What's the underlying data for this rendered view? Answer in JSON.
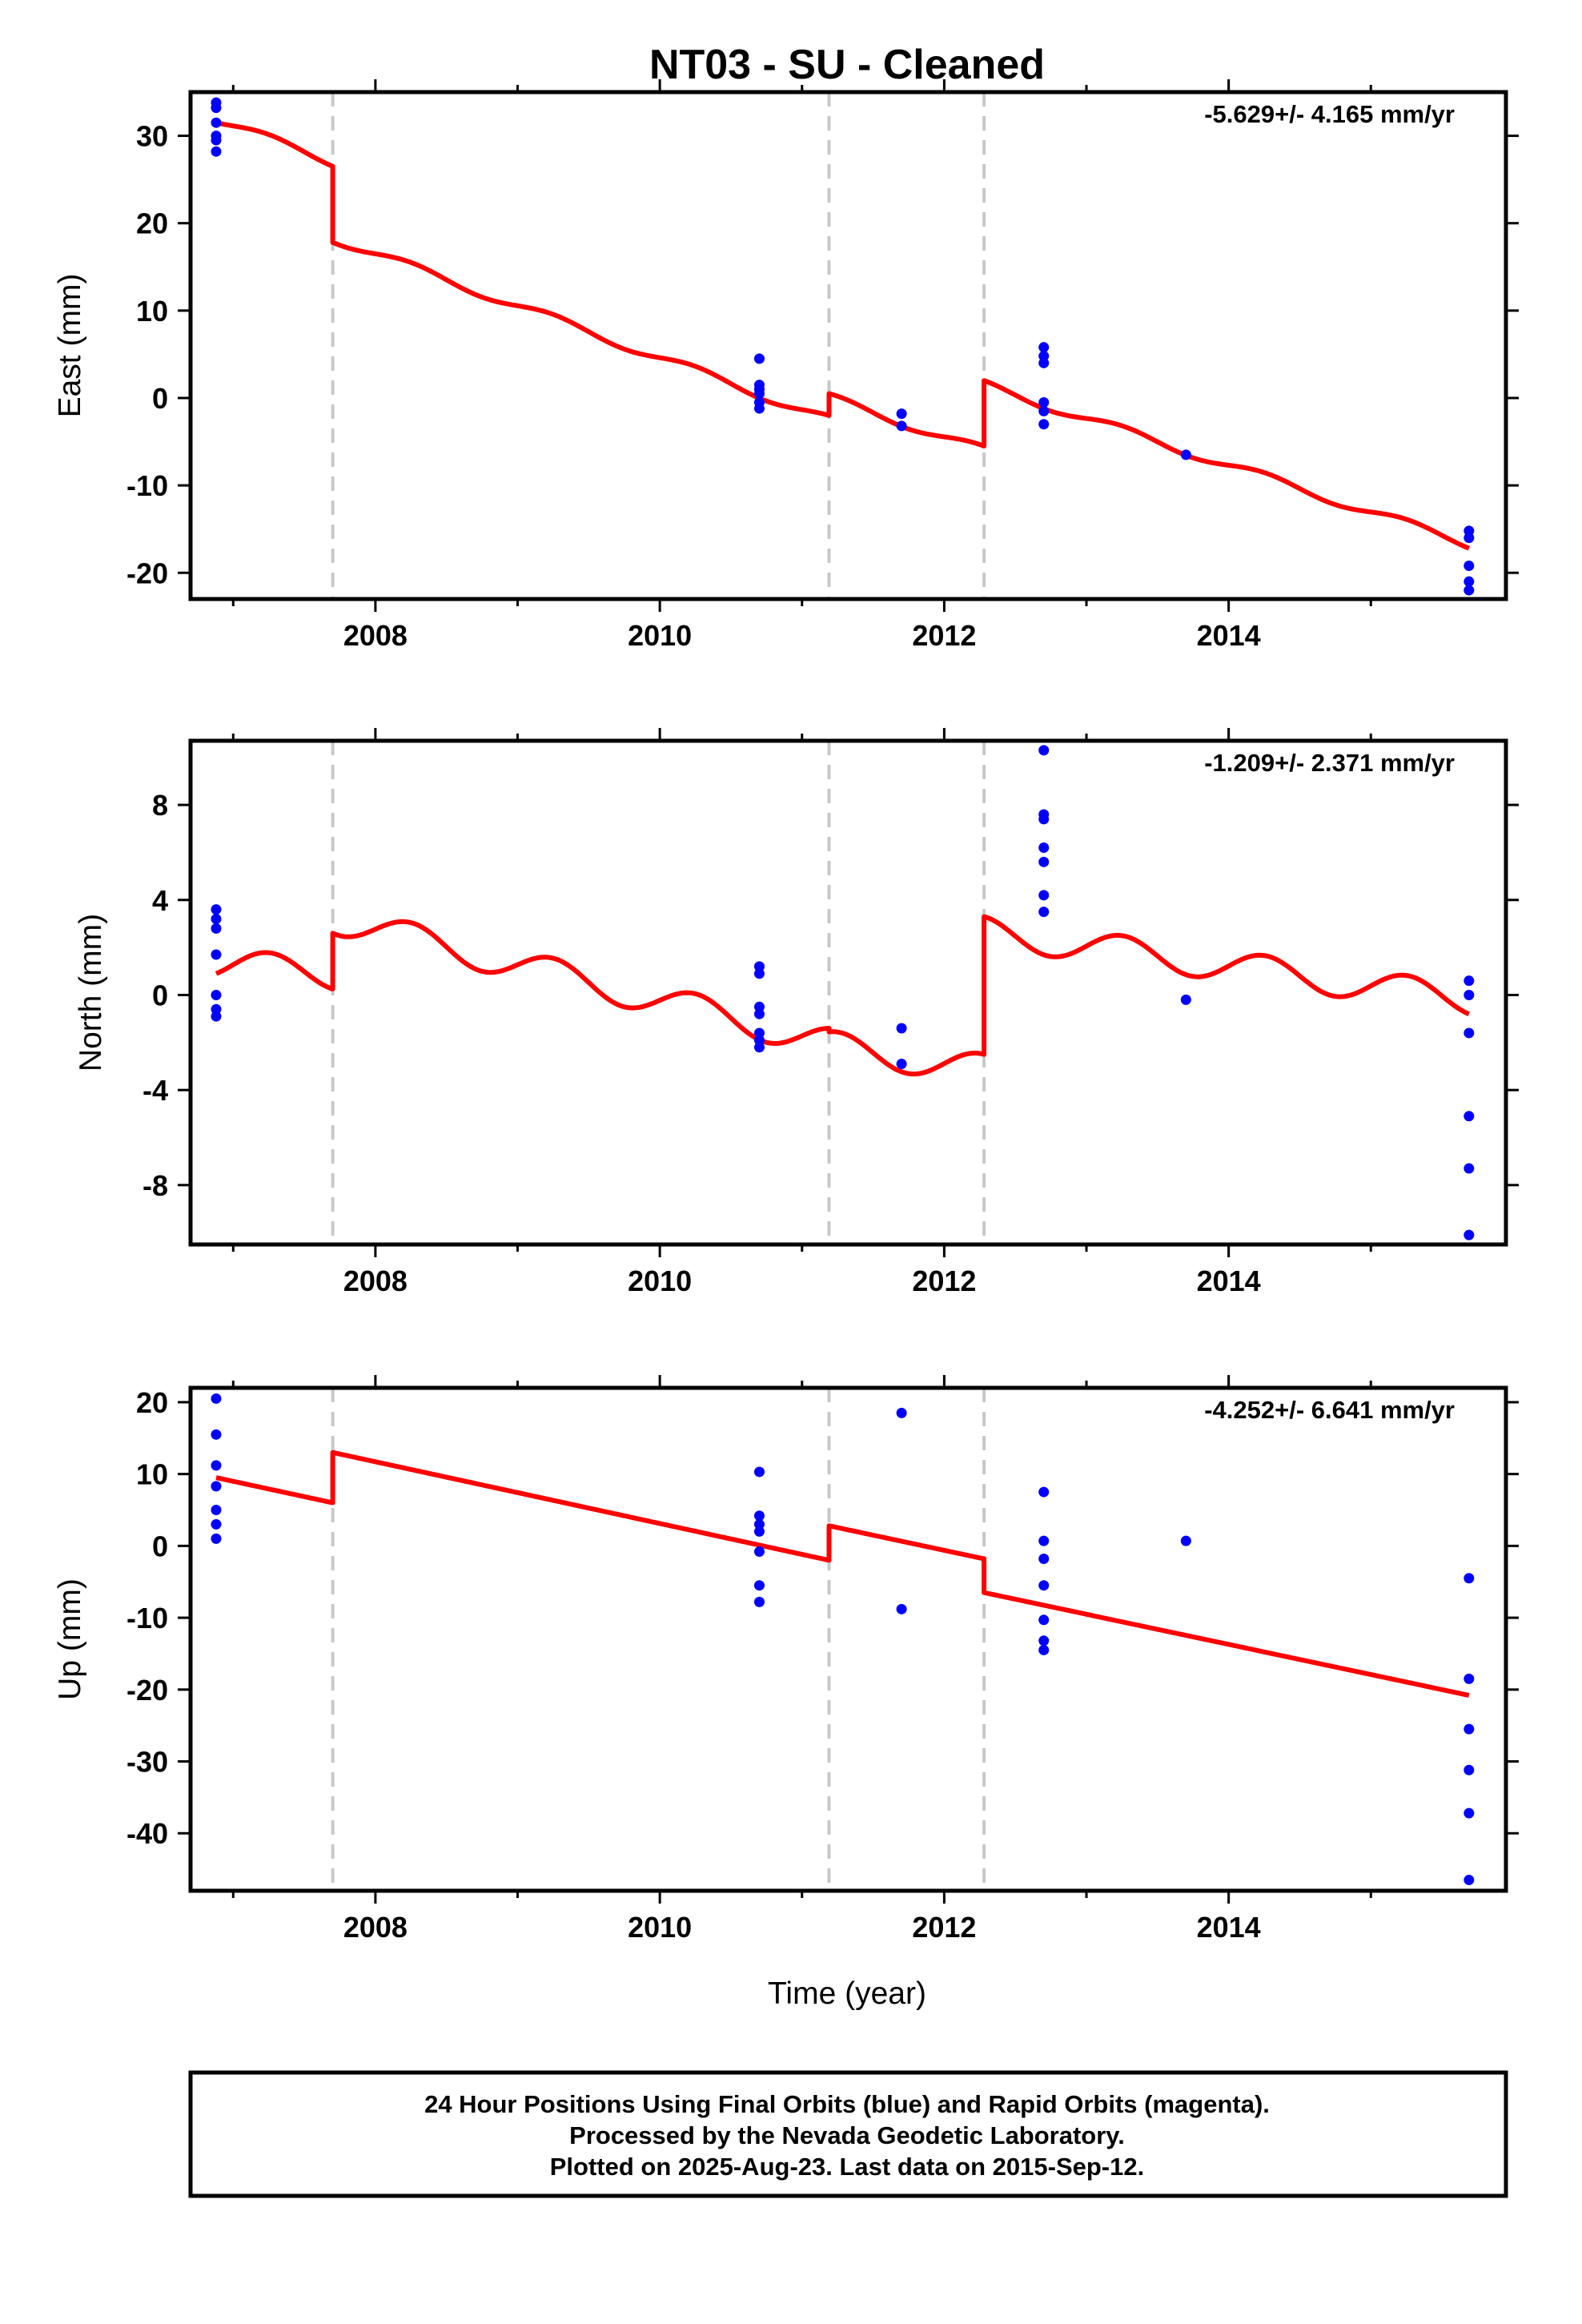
{
  "title": "NT03  - SU - Cleaned",
  "x_axis_label": "Time (year)",
  "colors": {
    "model": "#ff0000",
    "points": "#0000ff",
    "steps": "#c8c8c8",
    "frame": "#000000"
  },
  "caption_lines": [
    "24 Hour Positions Using Final Orbits (blue) and Rapid Orbits (magenta).",
    "Processed by the Nevada Geodetic Laboratory.",
    "Plotted on 2025-Aug-23. Last data on 2015-Sep-12."
  ],
  "chart_data": [
    {
      "type": "scatter",
      "component": "East",
      "ylabel": "East (mm)",
      "rate_label": "-5.629+/- 4.165 mm/yr",
      "xlim": [
        2006.7,
        2015.95
      ],
      "ylim": [
        -23,
        35
      ],
      "yticks": [
        30,
        20,
        10,
        0,
        -10,
        -20
      ],
      "xticks": [
        2008,
        2010,
        2012,
        2014
      ],
      "step_epochs": [
        2007.7,
        2011.19,
        2012.28
      ],
      "model": [
        {
          "x": [
            2006.88,
            2007.7
          ],
          "y": [
            31.5,
            26.5
          ],
          "seasonal": 0.5
        },
        {
          "x": [
            2007.7,
            2011.19
          ],
          "y": [
            17.8,
            -2.0
          ],
          "seasonal": 0.5
        },
        {
          "x": [
            2011.19,
            2012.28
          ],
          "y": [
            0.5,
            -5.5
          ],
          "seasonal": 0.5
        },
        {
          "x": [
            2012.28,
            2015.69
          ],
          "y": [
            2.0,
            -17.2
          ],
          "seasonal": 0.5
        }
      ],
      "points": [
        {
          "x": 2006.88,
          "y": 33.8
        },
        {
          "x": 2006.88,
          "y": 33.2
        },
        {
          "x": 2006.88,
          "y": 31.5
        },
        {
          "x": 2006.88,
          "y": 30.0
        },
        {
          "x": 2006.88,
          "y": 29.5
        },
        {
          "x": 2006.88,
          "y": 28.2
        },
        {
          "x": 2010.7,
          "y": 4.5
        },
        {
          "x": 2010.7,
          "y": 1.5
        },
        {
          "x": 2010.7,
          "y": 1.0
        },
        {
          "x": 2010.7,
          "y": 0.5
        },
        {
          "x": 2010.7,
          "y": -0.5
        },
        {
          "x": 2010.7,
          "y": -1.2
        },
        {
          "x": 2011.7,
          "y": -1.8
        },
        {
          "x": 2011.7,
          "y": -3.2
        },
        {
          "x": 2012.7,
          "y": 5.8
        },
        {
          "x": 2012.7,
          "y": 4.8
        },
        {
          "x": 2012.7,
          "y": 4.0
        },
        {
          "x": 2012.7,
          "y": -0.5
        },
        {
          "x": 2012.7,
          "y": -1.5
        },
        {
          "x": 2012.7,
          "y": -3.0
        },
        {
          "x": 2013.7,
          "y": -6.5
        },
        {
          "x": 2015.69,
          "y": -15.2
        },
        {
          "x": 2015.69,
          "y": -16.0
        },
        {
          "x": 2015.69,
          "y": -19.2
        },
        {
          "x": 2015.69,
          "y": -21.0
        },
        {
          "x": 2015.69,
          "y": -22.0
        }
      ]
    },
    {
      "type": "scatter",
      "component": "North",
      "ylabel": "North (mm)",
      "rate_label": "-1.209+/- 2.371 mm/yr",
      "xlim": [
        2006.7,
        2015.95
      ],
      "ylim": [
        -10.5,
        10.7
      ],
      "yticks": [
        8,
        4,
        0,
        -4,
        -8
      ],
      "xticks": [
        2008,
        2010,
        2012,
        2014
      ],
      "step_epochs": [
        2007.7,
        2011.19,
        2012.28
      ],
      "model": [
        {
          "x": [
            2006.88,
            2007.7
          ],
          "y": [
            0.9,
            0.25
          ],
          "seasonal": 0.65
        },
        {
          "x": [
            2007.7,
            2011.19
          ],
          "y": [
            2.6,
            -1.4
          ],
          "seasonal": 0.65
        },
        {
          "x": [
            2011.19,
            2012.28
          ],
          "y": [
            -1.55,
            -2.5
          ],
          "seasonal": 0.65
        },
        {
          "x": [
            2012.28,
            2015.69
          ],
          "y": [
            3.3,
            -0.8
          ],
          "seasonal": 0.65
        }
      ],
      "points": [
        {
          "x": 2006.88,
          "y": 3.6
        },
        {
          "x": 2006.88,
          "y": 3.2
        },
        {
          "x": 2006.88,
          "y": 2.8
        },
        {
          "x": 2006.88,
          "y": 1.7
        },
        {
          "x": 2006.88,
          "y": 0.0
        },
        {
          "x": 2006.88,
          "y": -0.6
        },
        {
          "x": 2006.88,
          "y": -0.9
        },
        {
          "x": 2010.7,
          "y": 1.2
        },
        {
          "x": 2010.7,
          "y": 0.9
        },
        {
          "x": 2010.7,
          "y": -0.5
        },
        {
          "x": 2010.7,
          "y": -0.8
        },
        {
          "x": 2010.7,
          "y": -1.6
        },
        {
          "x": 2010.7,
          "y": -1.9
        },
        {
          "x": 2010.7,
          "y": -2.2
        },
        {
          "x": 2011.7,
          "y": -1.4
        },
        {
          "x": 2011.7,
          "y": -2.9
        },
        {
          "x": 2012.7,
          "y": 10.3
        },
        {
          "x": 2012.7,
          "y": 7.6
        },
        {
          "x": 2012.7,
          "y": 7.4
        },
        {
          "x": 2012.7,
          "y": 6.2
        },
        {
          "x": 2012.7,
          "y": 5.6
        },
        {
          "x": 2012.7,
          "y": 4.2
        },
        {
          "x": 2012.7,
          "y": 3.5
        },
        {
          "x": 2013.7,
          "y": -0.2
        },
        {
          "x": 2015.69,
          "y": 0.6
        },
        {
          "x": 2015.69,
          "y": 0.0
        },
        {
          "x": 2015.69,
          "y": -1.6
        },
        {
          "x": 2015.69,
          "y": -5.1
        },
        {
          "x": 2015.69,
          "y": -7.3
        },
        {
          "x": 2015.69,
          "y": -10.1
        }
      ]
    },
    {
      "type": "scatter",
      "component": "Up",
      "ylabel": "Up (mm)",
      "rate_label": "-4.252+/- 6.641 mm/yr",
      "xlim": [
        2006.7,
        2015.95
      ],
      "ylim": [
        -48,
        22
      ],
      "yticks": [
        20,
        10,
        0,
        -10,
        -20,
        -30,
        -40
      ],
      "xticks": [
        2008,
        2010,
        2012,
        2014
      ],
      "step_epochs": [
        2007.7,
        2011.19,
        2012.28
      ],
      "model": [
        {
          "x": [
            2006.88,
            2007.7
          ],
          "y": [
            9.5,
            6.0
          ],
          "seasonal": 0
        },
        {
          "x": [
            2007.7,
            2011.19
          ],
          "y": [
            13.0,
            -2.0
          ],
          "seasonal": 0
        },
        {
          "x": [
            2011.19,
            2012.28
          ],
          "y": [
            2.8,
            -1.8
          ],
          "seasonal": 0
        },
        {
          "x": [
            2012.28,
            2015.69
          ],
          "y": [
            -6.5,
            -20.8
          ],
          "seasonal": 0
        }
      ],
      "points": [
        {
          "x": 2006.88,
          "y": 20.5
        },
        {
          "x": 2006.88,
          "y": 15.5
        },
        {
          "x": 2006.88,
          "y": 11.2
        },
        {
          "x": 2006.88,
          "y": 8.3
        },
        {
          "x": 2006.88,
          "y": 5.0
        },
        {
          "x": 2006.88,
          "y": 3.0
        },
        {
          "x": 2006.88,
          "y": 1.0
        },
        {
          "x": 2010.7,
          "y": 10.3
        },
        {
          "x": 2010.7,
          "y": 4.2
        },
        {
          "x": 2010.7,
          "y": 3.0
        },
        {
          "x": 2010.7,
          "y": 2.0
        },
        {
          "x": 2010.7,
          "y": -0.8
        },
        {
          "x": 2010.7,
          "y": -5.5
        },
        {
          "x": 2010.7,
          "y": -7.8
        },
        {
          "x": 2011.7,
          "y": 18.5
        },
        {
          "x": 2011.7,
          "y": -8.8
        },
        {
          "x": 2012.7,
          "y": 7.5
        },
        {
          "x": 2012.7,
          "y": 0.7
        },
        {
          "x": 2012.7,
          "y": -1.8
        },
        {
          "x": 2012.7,
          "y": -5.5
        },
        {
          "x": 2012.7,
          "y": -10.3
        },
        {
          "x": 2012.7,
          "y": -13.2
        },
        {
          "x": 2012.7,
          "y": -14.5
        },
        {
          "x": 2013.7,
          "y": 0.7
        },
        {
          "x": 2015.69,
          "y": -4.5
        },
        {
          "x": 2015.69,
          "y": -18.5
        },
        {
          "x": 2015.69,
          "y": -25.5
        },
        {
          "x": 2015.69,
          "y": -31.2
        },
        {
          "x": 2015.69,
          "y": -37.2
        },
        {
          "x": 2015.69,
          "y": -46.5
        }
      ]
    }
  ]
}
